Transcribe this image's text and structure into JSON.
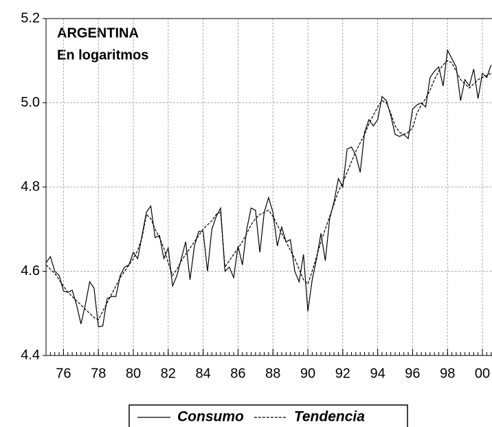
{
  "chart_data": {
    "type": "line",
    "title": "ARGENTINA",
    "subtitle": "En logaritmos",
    "x": [
      1975,
      1975.25,
      1975.5,
      1975.75,
      1976,
      1976.25,
      1976.5,
      1976.75,
      1977,
      1977.25,
      1977.5,
      1977.75,
      1978,
      1978.25,
      1978.5,
      1978.75,
      1979,
      1979.25,
      1979.5,
      1979.75,
      1980,
      1980.25,
      1980.5,
      1980.75,
      1981,
      1981.25,
      1981.5,
      1981.75,
      1982,
      1982.25,
      1982.5,
      1982.75,
      1983,
      1983.25,
      1983.5,
      1983.75,
      1984,
      1984.25,
      1984.5,
      1984.75,
      1985,
      1985.25,
      1985.5,
      1985.75,
      1986,
      1986.25,
      1986.5,
      1986.75,
      1987,
      1987.25,
      1987.5,
      1987.75,
      1988,
      1988.25,
      1988.5,
      1988.75,
      1989,
      1989.25,
      1989.5,
      1989.75,
      1990,
      1990.25,
      1990.5,
      1990.75,
      1991,
      1991.25,
      1991.5,
      1991.75,
      1992,
      1992.25,
      1992.5,
      1992.75,
      1993,
      1993.25,
      1993.5,
      1993.75,
      1994,
      1994.25,
      1994.5,
      1994.75,
      1995,
      1995.25,
      1995.5,
      1995.75,
      1996,
      1996.25,
      1996.5,
      1996.75,
      1997,
      1997.25,
      1997.5,
      1997.75,
      1998,
      1998.25,
      1998.5,
      1998.75,
      1999,
      1999.25,
      1999.5,
      1999.75,
      2000,
      2000.25,
      2000.5
    ],
    "series": [
      {
        "name": "Consumo",
        "color": "#000000",
        "dash": false,
        "values": [
          4.62,
          4.635,
          4.6,
          4.59,
          4.553,
          4.55,
          4.555,
          4.52,
          4.475,
          4.52,
          4.575,
          4.56,
          4.468,
          4.47,
          4.535,
          4.54,
          4.54,
          4.59,
          4.61,
          4.615,
          4.645,
          4.63,
          4.685,
          4.74,
          4.755,
          4.68,
          4.685,
          4.63,
          4.655,
          4.565,
          4.59,
          4.63,
          4.67,
          4.58,
          4.66,
          4.695,
          4.695,
          4.6,
          4.7,
          4.73,
          4.75,
          4.6,
          4.61,
          4.585,
          4.66,
          4.615,
          4.7,
          4.75,
          4.745,
          4.645,
          4.74,
          4.775,
          4.74,
          4.66,
          4.705,
          4.67,
          4.675,
          4.6,
          4.575,
          4.64,
          4.505,
          4.58,
          4.63,
          4.69,
          4.625,
          4.725,
          4.765,
          4.82,
          4.8,
          4.89,
          4.895,
          4.875,
          4.835,
          4.93,
          4.96,
          4.945,
          4.96,
          5.015,
          5.005,
          4.97,
          4.925,
          4.92,
          4.925,
          4.915,
          4.985,
          4.995,
          5.0,
          4.99,
          5.06,
          5.075,
          5.085,
          5.04,
          5.125,
          5.105,
          5.085,
          5.005,
          5.055,
          5.04,
          5.08,
          5.01,
          5.07,
          5.06,
          5.09
        ]
      },
      {
        "name": "Tendencia",
        "color": "#000000",
        "dash": true,
        "values": [
          4.615,
          4.605,
          4.595,
          4.58,
          4.565,
          4.55,
          4.54,
          4.53,
          4.52,
          4.51,
          4.5,
          4.49,
          4.485,
          4.505,
          4.525,
          4.545,
          4.565,
          4.585,
          4.6,
          4.615,
          4.63,
          4.65,
          4.68,
          4.735,
          4.725,
          4.7,
          4.68,
          4.655,
          4.62,
          4.59,
          4.605,
          4.625,
          4.64,
          4.655,
          4.67,
          4.685,
          4.7,
          4.71,
          4.72,
          4.735,
          4.74,
          4.61,
          4.625,
          4.64,
          4.655,
          4.67,
          4.69,
          4.71,
          4.725,
          4.735,
          4.74,
          4.745,
          4.73,
          4.71,
          4.69,
          4.67,
          4.65,
          4.63,
          4.605,
          4.58,
          4.57,
          4.6,
          4.635,
          4.67,
          4.7,
          4.73,
          4.76,
          4.79,
          4.81,
          4.835,
          4.86,
          4.885,
          4.905,
          4.925,
          4.95,
          4.97,
          4.99,
          5.005,
          5.0,
          4.975,
          4.945,
          4.93,
          4.925,
          4.93,
          4.94,
          4.975,
          4.995,
          5.01,
          5.03,
          5.055,
          5.075,
          5.09,
          5.1,
          5.095,
          5.075,
          5.055,
          5.045,
          5.035,
          5.045,
          5.055,
          5.06,
          5.065,
          5.07
        ]
      }
    ],
    "xlim": [
      1975,
      2000.55
    ],
    "xticks": [
      {
        "value": 1976,
        "label": "76"
      },
      {
        "value": 1978,
        "label": "78"
      },
      {
        "value": 1980,
        "label": "80"
      },
      {
        "value": 1982,
        "label": "82"
      },
      {
        "value": 1984,
        "label": "84"
      },
      {
        "value": 1986,
        "label": "86"
      },
      {
        "value": 1988,
        "label": "88"
      },
      {
        "value": 1990,
        "label": "90"
      },
      {
        "value": 1992,
        "label": "92"
      },
      {
        "value": 1994,
        "label": "94"
      },
      {
        "value": 1996,
        "label": "96"
      },
      {
        "value": 1998,
        "label": "98"
      },
      {
        "value": 2000,
        "label": "00"
      }
    ],
    "ylim": [
      4.4,
      5.2
    ],
    "yticks": [
      4.4,
      4.6,
      4.8,
      {
        "value": 5.0,
        "label": "5.0"
      },
      5.2
    ],
    "grid": true,
    "legend": "bottom"
  }
}
